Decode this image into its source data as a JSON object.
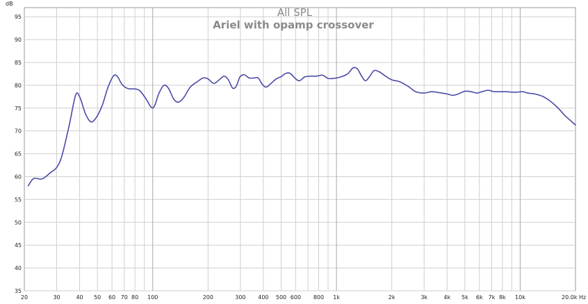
{
  "chart_data": {
    "type": "line",
    "title": "All SPL",
    "subtitle": "Ariel with opamp crossover",
    "ylabel": "dB",
    "x_scale": "log",
    "xlim": [
      20,
      20000
    ],
    "ylim": [
      35,
      97
    ],
    "grid": true,
    "y_ticks": [
      35,
      40,
      45,
      50,
      55,
      60,
      65,
      70,
      75,
      80,
      85,
      90,
      95
    ],
    "x_ticks": [
      {
        "value": 20,
        "label": "20"
      },
      {
        "value": 30,
        "label": "30"
      },
      {
        "value": 40,
        "label": "40"
      },
      {
        "value": 50,
        "label": "50"
      },
      {
        "value": 60,
        "label": "60"
      },
      {
        "value": 70,
        "label": "70"
      },
      {
        "value": 80,
        "label": "80"
      },
      {
        "value": 100,
        "label": "100"
      },
      {
        "value": 200,
        "label": "200"
      },
      {
        "value": 300,
        "label": "300"
      },
      {
        "value": 400,
        "label": "400"
      },
      {
        "value": 500,
        "label": "500"
      },
      {
        "value": 600,
        "label": "600"
      },
      {
        "value": 800,
        "label": "800"
      },
      {
        "value": 1000,
        "label": "1k"
      },
      {
        "value": 2000,
        "label": "2k"
      },
      {
        "value": 3000,
        "label": "3k"
      },
      {
        "value": 4000,
        "label": "4k"
      },
      {
        "value": 5000,
        "label": "5k"
      },
      {
        "value": 6000,
        "label": "6k"
      },
      {
        "value": 7000,
        "label": "7k"
      },
      {
        "value": 8000,
        "label": "8k"
      },
      {
        "value": 10000,
        "label": "10k"
      },
      {
        "value": 20000,
        "label": "20.0k Hz"
      }
    ],
    "series": [
      {
        "color": "#4a4aa8",
        "points": [
          [
            21,
            58
          ],
          [
            22.5,
            59.6
          ],
          [
            25,
            59.5
          ],
          [
            28,
            61
          ],
          [
            30,
            62
          ],
          [
            32,
            64.5
          ],
          [
            35,
            71
          ],
          [
            38,
            77.8
          ],
          [
            40,
            77.5
          ],
          [
            43,
            73.8
          ],
          [
            46,
            72
          ],
          [
            49,
            72.8
          ],
          [
            53,
            75.5
          ],
          [
            57,
            79.5
          ],
          [
            61,
            82
          ],
          [
            64,
            82
          ],
          [
            68,
            80.2
          ],
          [
            72,
            79.4
          ],
          [
            76,
            79.2
          ],
          [
            80,
            79.2
          ],
          [
            85,
            78.8
          ],
          [
            92,
            77
          ],
          [
            98,
            75.2
          ],
          [
            102,
            75.4
          ],
          [
            108,
            78.2
          ],
          [
            115,
            80
          ],
          [
            122,
            79.3
          ],
          [
            130,
            77
          ],
          [
            138,
            76.3
          ],
          [
            148,
            77.4
          ],
          [
            160,
            79.6
          ],
          [
            175,
            80.8
          ],
          [
            188,
            81.6
          ],
          [
            200,
            81.4
          ],
          [
            215,
            80.4
          ],
          [
            230,
            81.2
          ],
          [
            245,
            82
          ],
          [
            258,
            81.2
          ],
          [
            272,
            79.4
          ],
          [
            285,
            79.8
          ],
          [
            298,
            81.8
          ],
          [
            315,
            82.3
          ],
          [
            335,
            81.6
          ],
          [
            355,
            81.6
          ],
          [
            375,
            81.6
          ],
          [
            395,
            80.2
          ],
          [
            415,
            79.6
          ],
          [
            440,
            80.4
          ],
          [
            470,
            81.4
          ],
          [
            500,
            81.9
          ],
          [
            530,
            82.6
          ],
          [
            560,
            82.6
          ],
          [
            600,
            81.4
          ],
          [
            630,
            81
          ],
          [
            670,
            81.8
          ],
          [
            720,
            82
          ],
          [
            780,
            82
          ],
          [
            840,
            82.2
          ],
          [
            900,
            81.5
          ],
          [
            960,
            81.5
          ],
          [
            1050,
            81.8
          ],
          [
            1150,
            82.5
          ],
          [
            1230,
            83.8
          ],
          [
            1300,
            83.6
          ],
          [
            1370,
            82
          ],
          [
            1440,
            81
          ],
          [
            1520,
            82
          ],
          [
            1600,
            83.2
          ],
          [
            1700,
            83
          ],
          [
            1850,
            82
          ],
          [
            2000,
            81.2
          ],
          [
            2200,
            80.8
          ],
          [
            2450,
            79.8
          ],
          [
            2700,
            78.6
          ],
          [
            3000,
            78.3
          ],
          [
            3300,
            78.6
          ],
          [
            3600,
            78.4
          ],
          [
            4000,
            78.1
          ],
          [
            4300,
            77.8
          ],
          [
            4600,
            78.1
          ],
          [
            5000,
            78.7
          ],
          [
            5400,
            78.6
          ],
          [
            5800,
            78.3
          ],
          [
            6200,
            78.6
          ],
          [
            6700,
            78.9
          ],
          [
            7200,
            78.6
          ],
          [
            7800,
            78.6
          ],
          [
            8400,
            78.6
          ],
          [
            9000,
            78.5
          ],
          [
            9700,
            78.5
          ],
          [
            10300,
            78.6
          ],
          [
            11000,
            78.3
          ],
          [
            12000,
            78.1
          ],
          [
            13200,
            77.6
          ],
          [
            14500,
            76.6
          ],
          [
            16000,
            75.1
          ],
          [
            17500,
            73.4
          ],
          [
            19000,
            72.1
          ],
          [
            20000,
            71.3
          ]
        ]
      }
    ]
  }
}
